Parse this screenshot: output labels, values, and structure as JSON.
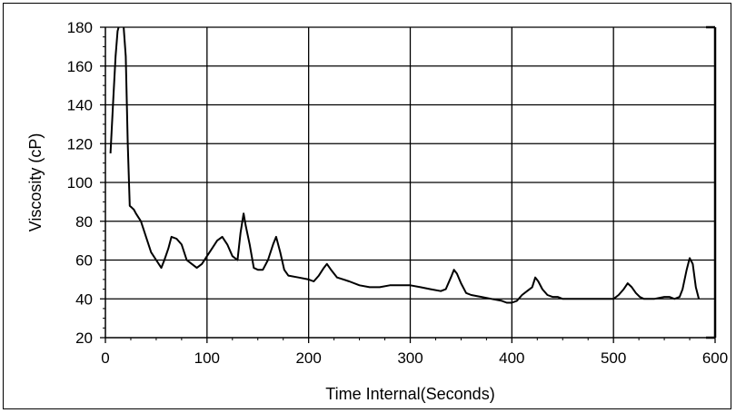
{
  "chart_data": {
    "type": "line",
    "title": "",
    "xlabel": "Time Internal(Seconds)",
    "ylabel": "Viscosity (cP)",
    "xlim": [
      0,
      600
    ],
    "ylim": [
      20,
      180
    ],
    "xticks": [
      "0",
      "100",
      "200",
      "300",
      "400",
      "500",
      "600"
    ],
    "yticks": [
      "20",
      "40",
      "60",
      "80",
      "100",
      "120",
      "140",
      "160",
      "180"
    ],
    "grid": true,
    "legend": "none",
    "colors": {
      "line": "#000000",
      "grid": "#000000",
      "background": "#ffffff"
    },
    "series": [
      {
        "x": [
          5,
          6,
          8,
          10,
          12,
          14,
          16,
          18,
          20,
          22,
          24,
          26,
          28,
          30,
          35,
          40,
          45,
          50,
          55,
          58,
          62,
          65,
          70,
          75,
          80,
          85,
          90,
          95,
          100,
          105,
          110,
          115,
          120,
          125,
          130,
          133,
          136,
          138,
          142,
          146,
          150,
          155,
          160,
          165,
          168,
          172,
          176,
          180,
          190,
          200,
          205,
          210,
          215,
          218,
          222,
          228,
          240,
          250,
          260,
          270,
          280,
          290,
          300,
          310,
          320,
          330,
          335,
          340,
          343,
          346,
          350,
          355,
          360,
          370,
          380,
          390,
          395,
          400,
          405,
          410,
          415,
          420,
          423,
          426,
          430,
          435,
          440,
          445,
          450,
          460,
          470,
          480,
          490,
          500,
          505,
          510,
          514,
          518,
          522,
          526,
          530,
          540,
          550,
          555,
          560,
          565,
          568,
          572,
          575,
          578,
          581,
          584
        ],
        "y": [
          115,
          125,
          145,
          165,
          178,
          182,
          183,
          180,
          165,
          120,
          88,
          87,
          86,
          84,
          80,
          72,
          64,
          60,
          56,
          60,
          66,
          72,
          71,
          68,
          60,
          58,
          56,
          58,
          62,
          66,
          70,
          72,
          68,
          62,
          60,
          74,
          84,
          78,
          68,
          56,
          55,
          55,
          60,
          68,
          72,
          64,
          55,
          52,
          51,
          50,
          49,
          52,
          56,
          58,
          55,
          51,
          49,
          47,
          46,
          46,
          47,
          47,
          47,
          46,
          45,
          44,
          45,
          51,
          55,
          53,
          48,
          43,
          42,
          41,
          40,
          39,
          38,
          38,
          39,
          42,
          44,
          46,
          51,
          49,
          45,
          42,
          41,
          41,
          40,
          40,
          40,
          40,
          40,
          40,
          42,
          45,
          48,
          46,
          43,
          41,
          40,
          40,
          41,
          41,
          40,
          41,
          45,
          55,
          61,
          58,
          46,
          40
        ]
      }
    ]
  }
}
